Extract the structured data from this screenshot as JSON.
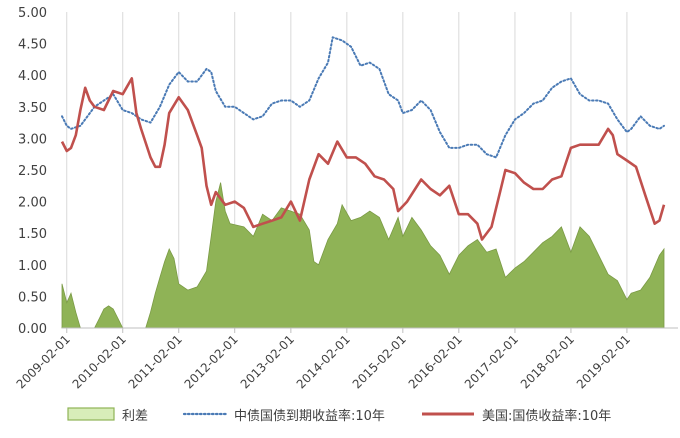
{
  "chart_data": {
    "type": "line",
    "title": "",
    "xlabel": "",
    "ylabel": "",
    "x_tick_labels": [
      "2009-02-01",
      "2010-02-01",
      "2011-02-01",
      "2012-02-01",
      "2013-02-01",
      "2014-02-01",
      "2015-02-01",
      "2016-02-01",
      "2017-02-01",
      "2018-02-01",
      "2019-02-01"
    ],
    "x_range": [
      "2009-01-01",
      "2019-12-31"
    ],
    "ylim": [
      0,
      5
    ],
    "y_ticks": [
      "0.00",
      "0.50",
      "1.00",
      "1.50",
      "2.00",
      "2.50",
      "3.00",
      "3.50",
      "4.00",
      "4.50",
      "5.00"
    ],
    "grid": {
      "horizontal": false,
      "vertical": true
    },
    "legend": {
      "placement": "bottom"
    },
    "series": [
      {
        "name": "利差",
        "style": "area",
        "color": "#8fb356",
        "legend_fill": "#d8edb9",
        "legend_border": "#8fb356",
        "points": [
          [
            "2009-01-01",
            0.7
          ],
          [
            "2009-02-01",
            0.4
          ],
          [
            "2009-03-01",
            0.55
          ],
          [
            "2009-04-01",
            0.25
          ],
          [
            "2009-05-01",
            0.0
          ],
          [
            "2009-08-01",
            0.0
          ],
          [
            "2009-09-01",
            0.15
          ],
          [
            "2009-10-01",
            0.3
          ],
          [
            "2009-11-01",
            0.35
          ],
          [
            "2009-12-01",
            0.3
          ],
          [
            "2010-01-01",
            0.15
          ],
          [
            "2010-02-01",
            0.0
          ],
          [
            "2010-07-01",
            0.0
          ],
          [
            "2010-08-01",
            0.25
          ],
          [
            "2010-09-01",
            0.55
          ],
          [
            "2010-10-01",
            0.8
          ],
          [
            "2010-11-01",
            1.05
          ],
          [
            "2010-12-01",
            1.25
          ],
          [
            "2011-01-01",
            1.1
          ],
          [
            "2011-02-01",
            0.7
          ],
          [
            "2011-04-01",
            0.6
          ],
          [
            "2011-06-01",
            0.65
          ],
          [
            "2011-08-01",
            0.9
          ],
          [
            "2011-09-01",
            1.45
          ],
          [
            "2011-10-01",
            2.0
          ],
          [
            "2011-11-01",
            2.3
          ],
          [
            "2011-12-01",
            1.85
          ],
          [
            "2012-01-01",
            1.65
          ],
          [
            "2012-04-01",
            1.6
          ],
          [
            "2012-06-01",
            1.45
          ],
          [
            "2012-08-01",
            1.8
          ],
          [
            "2012-10-01",
            1.7
          ],
          [
            "2012-12-01",
            1.9
          ],
          [
            "2013-02-01",
            1.85
          ],
          [
            "2013-04-01",
            1.8
          ],
          [
            "2013-06-01",
            1.55
          ],
          [
            "2013-07-01",
            1.05
          ],
          [
            "2013-08-01",
            1.0
          ],
          [
            "2013-10-01",
            1.4
          ],
          [
            "2013-12-01",
            1.65
          ],
          [
            "2014-01-01",
            1.95
          ],
          [
            "2014-03-01",
            1.7
          ],
          [
            "2014-05-01",
            1.75
          ],
          [
            "2014-07-01",
            1.85
          ],
          [
            "2014-09-01",
            1.75
          ],
          [
            "2014-11-01",
            1.4
          ],
          [
            "2015-01-01",
            1.75
          ],
          [
            "2015-02-01",
            1.45
          ],
          [
            "2015-04-01",
            1.75
          ],
          [
            "2015-06-01",
            1.55
          ],
          [
            "2015-08-01",
            1.3
          ],
          [
            "2015-10-01",
            1.15
          ],
          [
            "2015-12-01",
            0.85
          ],
          [
            "2016-02-01",
            1.15
          ],
          [
            "2016-04-01",
            1.3
          ],
          [
            "2016-06-01",
            1.4
          ],
          [
            "2016-08-01",
            1.2
          ],
          [
            "2016-10-01",
            1.25
          ],
          [
            "2016-12-01",
            0.8
          ],
          [
            "2017-02-01",
            0.95
          ],
          [
            "2017-04-01",
            1.05
          ],
          [
            "2017-06-01",
            1.2
          ],
          [
            "2017-08-01",
            1.35
          ],
          [
            "2017-10-01",
            1.45
          ],
          [
            "2017-12-01",
            1.6
          ],
          [
            "2018-02-01",
            1.2
          ],
          [
            "2018-04-01",
            1.6
          ],
          [
            "2018-06-01",
            1.45
          ],
          [
            "2018-08-01",
            1.15
          ],
          [
            "2018-10-01",
            0.85
          ],
          [
            "2018-12-01",
            0.75
          ],
          [
            "2019-02-01",
            0.45
          ],
          [
            "2019-03-01",
            0.55
          ],
          [
            "2019-05-01",
            0.6
          ],
          [
            "2019-07-01",
            0.8
          ],
          [
            "2019-09-01",
            1.15
          ],
          [
            "2019-10-01",
            1.25
          ]
        ]
      },
      {
        "name": "中债国债到期收益率:10年",
        "style": "dotted",
        "color": "#4a7ab5",
        "points": [
          [
            "2009-01-01",
            3.35
          ],
          [
            "2009-02-01",
            3.2
          ],
          [
            "2009-03-01",
            3.15
          ],
          [
            "2009-05-01",
            3.2
          ],
          [
            "2009-06-01",
            3.3
          ],
          [
            "2009-08-01",
            3.5
          ],
          [
            "2009-10-01",
            3.6
          ],
          [
            "2009-12-01",
            3.7
          ],
          [
            "2010-02-01",
            3.45
          ],
          [
            "2010-04-01",
            3.4
          ],
          [
            "2010-06-01",
            3.3
          ],
          [
            "2010-08-01",
            3.25
          ],
          [
            "2010-10-01",
            3.5
          ],
          [
            "2010-12-01",
            3.85
          ],
          [
            "2011-02-01",
            4.05
          ],
          [
            "2011-04-01",
            3.9
          ],
          [
            "2011-06-01",
            3.9
          ],
          [
            "2011-08-01",
            4.1
          ],
          [
            "2011-09-01",
            4.05
          ],
          [
            "2011-10-01",
            3.75
          ],
          [
            "2011-12-01",
            3.5
          ],
          [
            "2012-02-01",
            3.5
          ],
          [
            "2012-04-01",
            3.4
          ],
          [
            "2012-06-01",
            3.3
          ],
          [
            "2012-08-01",
            3.35
          ],
          [
            "2012-10-01",
            3.55
          ],
          [
            "2012-12-01",
            3.6
          ],
          [
            "2013-02-01",
            3.6
          ],
          [
            "2013-04-01",
            3.5
          ],
          [
            "2013-06-01",
            3.6
          ],
          [
            "2013-08-01",
            3.95
          ],
          [
            "2013-10-01",
            4.2
          ],
          [
            "2013-11-01",
            4.6
          ],
          [
            "2014-01-01",
            4.55
          ],
          [
            "2014-03-01",
            4.45
          ],
          [
            "2014-05-01",
            4.15
          ],
          [
            "2014-07-01",
            4.2
          ],
          [
            "2014-09-01",
            4.1
          ],
          [
            "2014-11-01",
            3.7
          ],
          [
            "2015-01-01",
            3.6
          ],
          [
            "2015-02-01",
            3.4
          ],
          [
            "2015-04-01",
            3.45
          ],
          [
            "2015-06-01",
            3.6
          ],
          [
            "2015-08-01",
            3.45
          ],
          [
            "2015-10-01",
            3.1
          ],
          [
            "2015-12-01",
            2.85
          ],
          [
            "2016-02-01",
            2.85
          ],
          [
            "2016-04-01",
            2.9
          ],
          [
            "2016-06-01",
            2.9
          ],
          [
            "2016-08-01",
            2.75
          ],
          [
            "2016-10-01",
            2.7
          ],
          [
            "2016-12-01",
            3.05
          ],
          [
            "2017-02-01",
            3.3
          ],
          [
            "2017-04-01",
            3.4
          ],
          [
            "2017-06-01",
            3.55
          ],
          [
            "2017-08-01",
            3.6
          ],
          [
            "2017-10-01",
            3.8
          ],
          [
            "2017-12-01",
            3.9
          ],
          [
            "2018-02-01",
            3.95
          ],
          [
            "2018-04-01",
            3.7
          ],
          [
            "2018-06-01",
            3.6
          ],
          [
            "2018-08-01",
            3.6
          ],
          [
            "2018-10-01",
            3.55
          ],
          [
            "2018-12-01",
            3.3
          ],
          [
            "2019-02-01",
            3.1
          ],
          [
            "2019-03-01",
            3.15
          ],
          [
            "2019-05-01",
            3.35
          ],
          [
            "2019-07-01",
            3.2
          ],
          [
            "2019-09-01",
            3.15
          ],
          [
            "2019-10-01",
            3.2
          ]
        ]
      },
      {
        "name": "美国:国债收益率:10年",
        "style": "solid",
        "color": "#c0504d",
        "points": [
          [
            "2009-01-01",
            2.95
          ],
          [
            "2009-02-01",
            2.8
          ],
          [
            "2009-03-01",
            2.85
          ],
          [
            "2009-04-01",
            3.05
          ],
          [
            "2009-05-01",
            3.45
          ],
          [
            "2009-06-01",
            3.8
          ],
          [
            "2009-07-01",
            3.6
          ],
          [
            "2009-08-01",
            3.5
          ],
          [
            "2009-10-01",
            3.45
          ],
          [
            "2009-12-01",
            3.75
          ],
          [
            "2010-02-01",
            3.7
          ],
          [
            "2010-04-01",
            3.95
          ],
          [
            "2010-05-01",
            3.4
          ],
          [
            "2010-06-01",
            3.15
          ],
          [
            "2010-08-01",
            2.7
          ],
          [
            "2010-09-01",
            2.55
          ],
          [
            "2010-10-01",
            2.55
          ],
          [
            "2010-11-01",
            2.9
          ],
          [
            "2010-12-01",
            3.4
          ],
          [
            "2011-02-01",
            3.65
          ],
          [
            "2011-04-01",
            3.45
          ],
          [
            "2011-06-01",
            3.05
          ],
          [
            "2011-07-01",
            2.85
          ],
          [
            "2011-08-01",
            2.25
          ],
          [
            "2011-09-01",
            1.95
          ],
          [
            "2011-10-01",
            2.15
          ],
          [
            "2011-12-01",
            1.95
          ],
          [
            "2012-02-01",
            2.0
          ],
          [
            "2012-04-01",
            1.9
          ],
          [
            "2012-06-01",
            1.6
          ],
          [
            "2012-08-01",
            1.65
          ],
          [
            "2012-10-01",
            1.7
          ],
          [
            "2012-12-01",
            1.75
          ],
          [
            "2013-02-01",
            2.0
          ],
          [
            "2013-04-01",
            1.7
          ],
          [
            "2013-06-01",
            2.35
          ],
          [
            "2013-08-01",
            2.75
          ],
          [
            "2013-10-01",
            2.6
          ],
          [
            "2013-12-01",
            2.95
          ],
          [
            "2014-02-01",
            2.7
          ],
          [
            "2014-04-01",
            2.7
          ],
          [
            "2014-06-01",
            2.6
          ],
          [
            "2014-08-01",
            2.4
          ],
          [
            "2014-10-01",
            2.35
          ],
          [
            "2014-12-01",
            2.2
          ],
          [
            "2015-01-01",
            1.85
          ],
          [
            "2015-03-01",
            2.0
          ],
          [
            "2015-06-01",
            2.35
          ],
          [
            "2015-08-01",
            2.2
          ],
          [
            "2015-10-01",
            2.1
          ],
          [
            "2015-12-01",
            2.25
          ],
          [
            "2016-02-01",
            1.8
          ],
          [
            "2016-04-01",
            1.8
          ],
          [
            "2016-06-01",
            1.65
          ],
          [
            "2016-07-01",
            1.4
          ],
          [
            "2016-09-01",
            1.6
          ],
          [
            "2016-11-01",
            2.2
          ],
          [
            "2016-12-01",
            2.5
          ],
          [
            "2017-02-01",
            2.45
          ],
          [
            "2017-04-01",
            2.3
          ],
          [
            "2017-06-01",
            2.2
          ],
          [
            "2017-08-01",
            2.2
          ],
          [
            "2017-10-01",
            2.35
          ],
          [
            "2017-12-01",
            2.4
          ],
          [
            "2018-02-01",
            2.85
          ],
          [
            "2018-04-01",
            2.9
          ],
          [
            "2018-06-01",
            2.9
          ],
          [
            "2018-08-01",
            2.9
          ],
          [
            "2018-10-01",
            3.15
          ],
          [
            "2018-11-01",
            3.05
          ],
          [
            "2018-12-01",
            2.75
          ],
          [
            "2019-02-01",
            2.65
          ],
          [
            "2019-04-01",
            2.55
          ],
          [
            "2019-06-01",
            2.1
          ],
          [
            "2019-08-01",
            1.65
          ],
          [
            "2019-09-01",
            1.7
          ],
          [
            "2019-10-01",
            1.95
          ]
        ]
      }
    ]
  }
}
